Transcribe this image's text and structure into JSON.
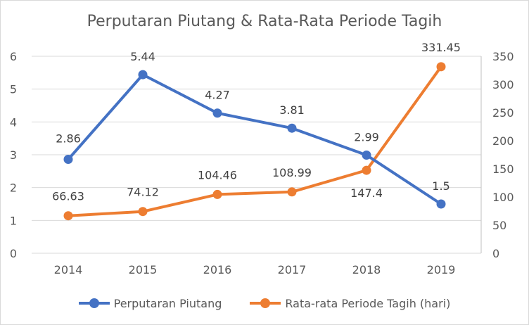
{
  "chart_data": {
    "type": "line",
    "title": "Perputaran Piutang & Rata-Rata Periode Tagih",
    "categories": [
      "2014",
      "2015",
      "2016",
      "2017",
      "2018",
      "2019"
    ],
    "series": [
      {
        "name": "Perputaran Piutang",
        "axis": "left",
        "color": "#4472c4",
        "values": [
          2.86,
          5.44,
          4.27,
          3.81,
          2.99,
          1.5
        ],
        "labels": [
          "2.86",
          "5.44",
          "4.27",
          "3.81",
          "2.99",
          "1.5"
        ]
      },
      {
        "name": "Rata-rata Periode Tagih (hari)",
        "axis": "right",
        "color": "#ed7d31",
        "values": [
          66.63,
          74.12,
          104.46,
          108.99,
          147.4,
          331.45
        ],
        "labels": [
          "66.63",
          "74.12",
          "104.46",
          "108.99",
          "147.4",
          "331.45"
        ]
      }
    ],
    "y_left": {
      "min": 0,
      "max": 6,
      "ticks": [
        "0",
        "1",
        "2",
        "3",
        "4",
        "5",
        "6"
      ]
    },
    "y_right": {
      "min": 0,
      "max": 350,
      "ticks": [
        "0",
        "50",
        "100",
        "150",
        "200",
        "250",
        "300",
        "350"
      ]
    },
    "grid": true,
    "legend_position": "bottom"
  }
}
